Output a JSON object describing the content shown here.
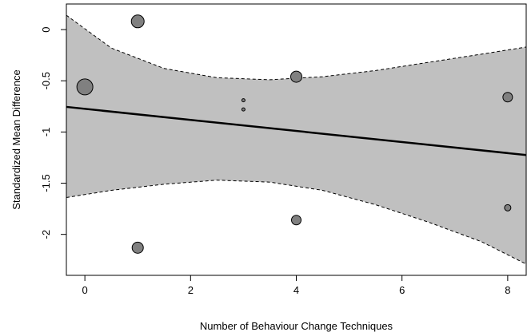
{
  "chart_data": {
    "type": "scatter",
    "xlabel": "Number of Behaviour Change Techniques",
    "ylabel": "Standardized Mean Difference",
    "xlim": [
      -0.35,
      8.35
    ],
    "ylim": [
      -2.4,
      0.25
    ],
    "x_ticks": [
      0,
      2,
      4,
      6,
      8
    ],
    "y_ticks": [
      0,
      -0.5,
      -1,
      -1.5,
      -2
    ],
    "points": [
      {
        "x": 0,
        "y": -0.56,
        "size": 10
      },
      {
        "x": 1,
        "y": 0.08,
        "size": 8
      },
      {
        "x": 1,
        "y": -2.13,
        "size": 7
      },
      {
        "x": 3,
        "y": -0.69,
        "size": 2
      },
      {
        "x": 3,
        "y": -0.78,
        "size": 2
      },
      {
        "x": 4,
        "y": -0.46,
        "size": 7
      },
      {
        "x": 4,
        "y": -1.86,
        "size": 6
      },
      {
        "x": 8,
        "y": -0.66,
        "size": 6
      },
      {
        "x": 8,
        "y": -1.74,
        "size": 4
      }
    ],
    "regression_line": [
      {
        "x": -0.35,
        "y": -0.755
      },
      {
        "x": 8.35,
        "y": -1.225
      }
    ],
    "ci_upper": [
      {
        "x": -0.35,
        "y": 0.14
      },
      {
        "x": 0.5,
        "y": -0.18
      },
      {
        "x": 1.5,
        "y": -0.38
      },
      {
        "x": 2.5,
        "y": -0.47
      },
      {
        "x": 3.5,
        "y": -0.49
      },
      {
        "x": 4.5,
        "y": -0.46
      },
      {
        "x": 5.5,
        "y": -0.4
      },
      {
        "x": 6.5,
        "y": -0.32
      },
      {
        "x": 7.5,
        "y": -0.24
      },
      {
        "x": 8.35,
        "y": -0.17
      }
    ],
    "ci_lower": [
      {
        "x": -0.35,
        "y": -1.64
      },
      {
        "x": 0.5,
        "y": -1.57
      },
      {
        "x": 1.5,
        "y": -1.51
      },
      {
        "x": 2.5,
        "y": -1.47
      },
      {
        "x": 3.5,
        "y": -1.49
      },
      {
        "x": 4.5,
        "y": -1.57
      },
      {
        "x": 5.5,
        "y": -1.71
      },
      {
        "x": 6.5,
        "y": -1.88
      },
      {
        "x": 7.5,
        "y": -2.07
      },
      {
        "x": 8.35,
        "y": -2.29
      }
    ],
    "band_color": "#c0c0c0",
    "point_color": "#808080",
    "grid": false
  }
}
